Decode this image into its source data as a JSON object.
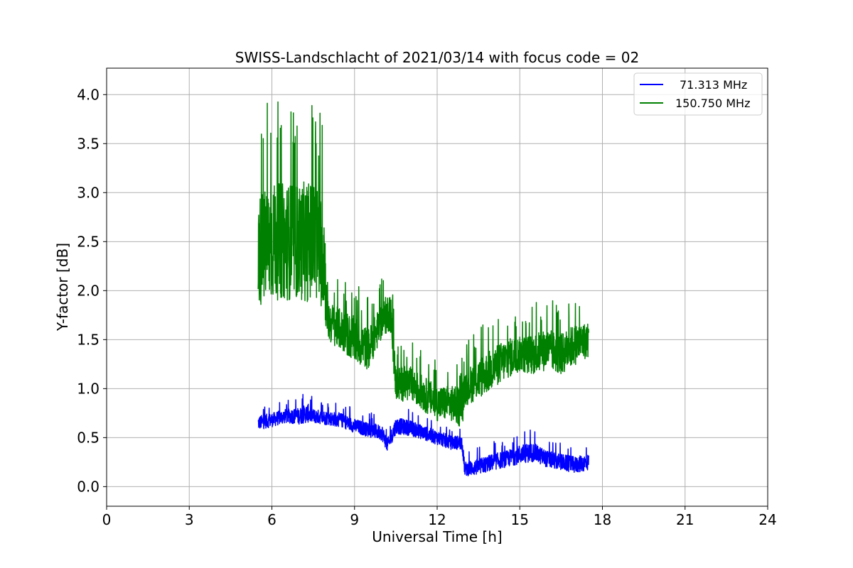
{
  "chart_data": {
    "type": "line",
    "title": "SWISS-Landschlacht of 2021/03/14 with focus code = 02",
    "xlabel": "Universal Time [h]",
    "ylabel": "Y-factor [dB]",
    "xlim": [
      0,
      24
    ],
    "ylim": [
      -0.2,
      4.27
    ],
    "xticks": [
      0,
      3,
      6,
      9,
      12,
      15,
      18,
      21,
      24
    ],
    "yticks": [
      0.0,
      0.5,
      1.0,
      1.5,
      2.0,
      2.5,
      3.0,
      3.5,
      4.0
    ],
    "xtick_labels": [
      "0",
      "3",
      "6",
      "9",
      "12",
      "15",
      "18",
      "21",
      "24"
    ],
    "ytick_labels": [
      "0.0",
      "0.5",
      "1.0",
      "1.5",
      "2.0",
      "2.5",
      "3.0",
      "3.5",
      "4.0"
    ],
    "grid": true,
    "legend_position": "top-right",
    "series": [
      {
        "name": "71.313 MHz",
        "color": "#0000ff",
        "x": [
          5.5,
          6.0,
          6.5,
          7.0,
          7.3,
          7.5,
          8.0,
          8.5,
          9.0,
          9.5,
          10.0,
          10.2,
          10.5,
          11.0,
          11.5,
          12.0,
          12.5,
          12.9,
          13.0,
          13.5,
          14.0,
          14.5,
          15.0,
          15.5,
          16.0,
          16.5,
          17.0,
          17.5
        ],
        "values": [
          0.65,
          0.68,
          0.72,
          0.72,
          0.75,
          0.72,
          0.7,
          0.68,
          0.62,
          0.58,
          0.55,
          0.42,
          0.62,
          0.6,
          0.55,
          0.5,
          0.45,
          0.45,
          0.18,
          0.2,
          0.25,
          0.28,
          0.33,
          0.35,
          0.28,
          0.25,
          0.22,
          0.25
        ],
        "spread": [
          0.12,
          0.12,
          0.12,
          0.14,
          0.16,
          0.12,
          0.12,
          0.12,
          0.12,
          0.12,
          0.13,
          0.12,
          0.14,
          0.13,
          0.12,
          0.12,
          0.12,
          0.12,
          0.12,
          0.14,
          0.14,
          0.14,
          0.16,
          0.16,
          0.14,
          0.14,
          0.14,
          0.14
        ]
      },
      {
        "name": "150.750 MHz",
        "color": "#008000",
        "x": [
          5.5,
          6.0,
          6.5,
          7.0,
          7.5,
          7.9,
          8.0,
          8.5,
          9.0,
          9.5,
          10.0,
          10.3,
          10.5,
          11.0,
          11.5,
          12.0,
          12.5,
          12.9,
          13.0,
          13.5,
          14.0,
          14.5,
          15.0,
          15.5,
          16.0,
          16.5,
          17.0,
          17.5
        ],
        "values": [
          2.4,
          2.5,
          2.5,
          2.5,
          2.5,
          2.4,
          1.7,
          1.6,
          1.5,
          1.4,
          1.7,
          1.8,
          1.05,
          1.05,
          0.95,
          0.85,
          0.85,
          0.8,
          1.0,
          1.1,
          1.2,
          1.3,
          1.35,
          1.35,
          1.4,
          1.35,
          1.45,
          1.5
        ],
        "spread": [
          0.95,
          1.0,
          1.0,
          1.0,
          1.05,
          1.0,
          0.35,
          0.35,
          0.4,
          0.35,
          0.3,
          0.35,
          0.3,
          0.3,
          0.3,
          0.3,
          0.3,
          0.35,
          0.3,
          0.35,
          0.35,
          0.35,
          0.3,
          0.35,
          0.35,
          0.35,
          0.35,
          0.3
        ]
      }
    ]
  }
}
